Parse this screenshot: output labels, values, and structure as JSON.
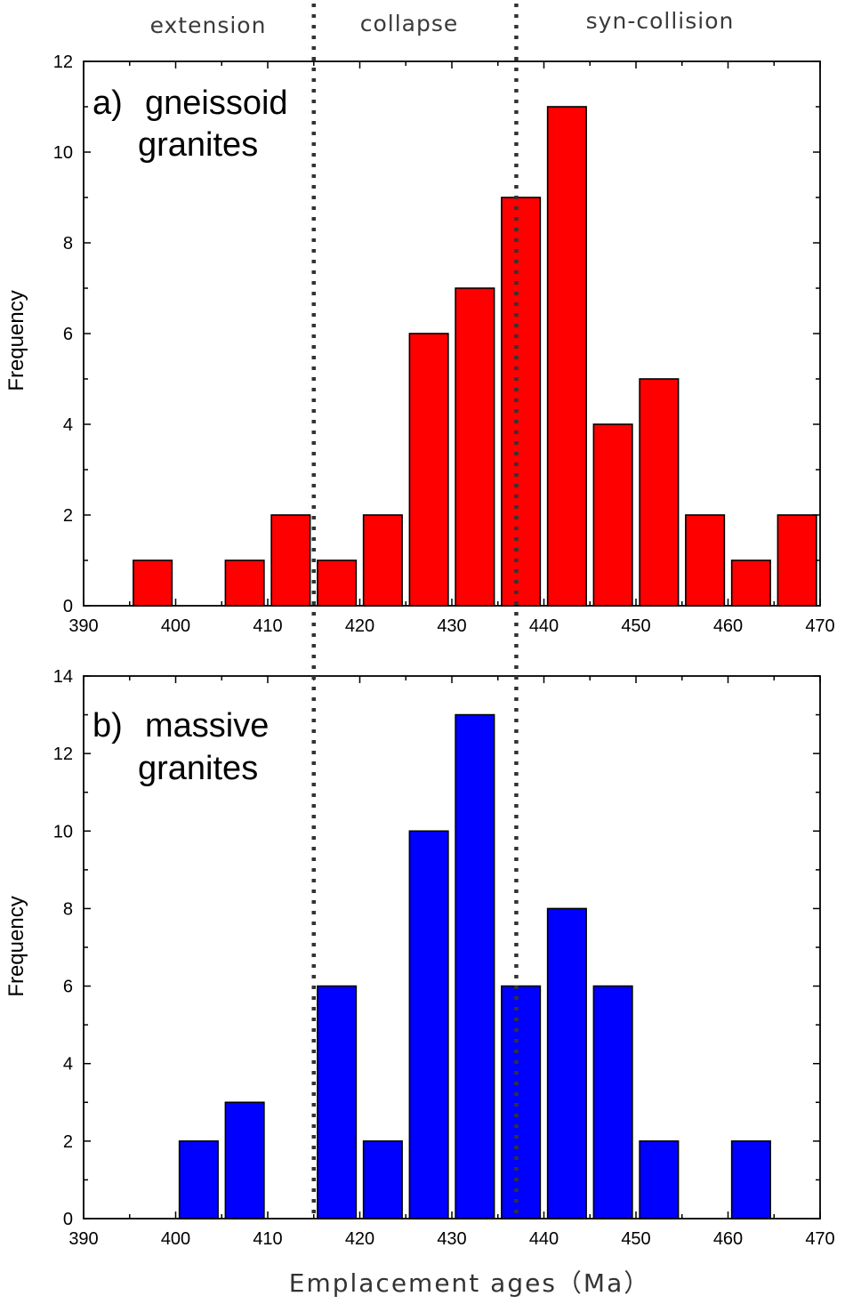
{
  "regions": [
    "extension",
    "collapse",
    "syn-collision"
  ],
  "boundaries": [
    415,
    437
  ],
  "xlabel": "Emplacement ages（Ma）",
  "chart_data": [
    {
      "type": "bar",
      "panel": "a)",
      "label_lines": [
        "gneissoid",
        "granites"
      ],
      "ylabel": "Frequency",
      "xlim": [
        390,
        470
      ],
      "ylim": [
        0,
        12
      ],
      "xticks": [
        390,
        400,
        410,
        420,
        430,
        440,
        450,
        460,
        470
      ],
      "yticks": [
        0,
        2,
        4,
        6,
        8,
        10,
        12
      ],
      "bin_width": 5,
      "bin_starts": [
        395,
        405,
        410,
        415,
        420,
        425,
        430,
        435,
        440,
        445,
        450,
        455,
        460,
        465
      ],
      "values": [
        1,
        1,
        2,
        1,
        2,
        6,
        7,
        9,
        11,
        4,
        5,
        2,
        1,
        2
      ],
      "color": "#ff0000"
    },
    {
      "type": "bar",
      "panel": "b)",
      "label_lines": [
        "massive",
        "granites"
      ],
      "ylabel": "Frequency",
      "xlim": [
        390,
        470
      ],
      "ylim": [
        0,
        14
      ],
      "xticks": [
        390,
        400,
        410,
        420,
        430,
        440,
        450,
        460,
        470
      ],
      "yticks": [
        0,
        2,
        4,
        6,
        8,
        10,
        12,
        14
      ],
      "bin_width": 5,
      "bin_starts": [
        400,
        405,
        415,
        420,
        425,
        430,
        435,
        440,
        445,
        450,
        460
      ],
      "values": [
        2,
        3,
        6,
        2,
        10,
        13,
        6,
        8,
        6,
        2,
        2
      ],
      "color": "#0000ff"
    }
  ]
}
